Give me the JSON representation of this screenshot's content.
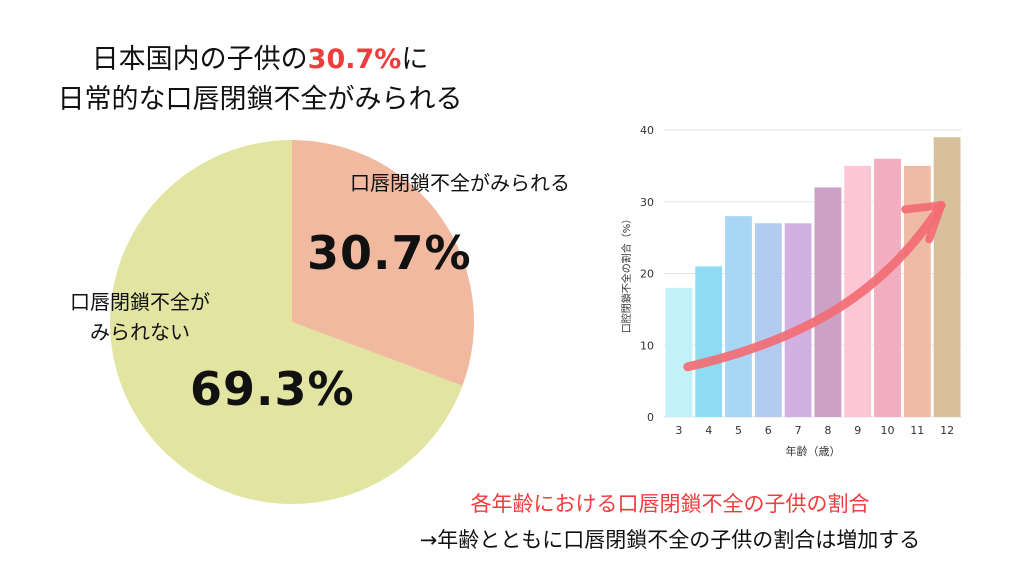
{
  "title": {
    "line1_prefix": "日本国内の子供の",
    "line1_highlight": "30.7%",
    "line1_suffix": "に",
    "line2": "日常的な口唇閉鎖不全がみられる",
    "highlight_color": "#f03c3c"
  },
  "chart_data": [
    {
      "type": "pie",
      "slices": [
        {
          "label": "口唇閉鎖不全がみられる",
          "value": 30.7,
          "value_label": "30.7%",
          "color": "#f0b9a0"
        },
        {
          "label_lines": [
            "口唇閉鎖不全が",
            "みられない"
          ],
          "value": 69.3,
          "value_label": "69.3%",
          "color": "#e1e5a1"
        }
      ]
    },
    {
      "type": "bar",
      "categories": [
        "3",
        "4",
        "5",
        "6",
        "7",
        "8",
        "9",
        "10",
        "11",
        "12"
      ],
      "values": [
        18,
        21,
        28,
        27,
        27,
        32,
        35,
        36,
        35,
        39
      ],
      "colors": [
        "#c2f2f8",
        "#8fdcf2",
        "#a8d6f5",
        "#b3cbef",
        "#d2b1e2",
        "#cda0c5",
        "#fcc6d6",
        "#f2aec0",
        "#f0bba4",
        "#d8c09c"
      ],
      "xlabel": "年齢（歳）",
      "ylabel": "口腔閉鎖不全の割合（%）",
      "ylim": [
        0,
        40
      ],
      "yticks": [
        0,
        10,
        20,
        30,
        40
      ],
      "grid": true,
      "trend_arrow_color": "#f26d73"
    }
  ],
  "caption": {
    "line1": "各年齢における口唇閉鎖不全の子供の割合",
    "line2": "→年齢とともに口唇閉鎖不全の子供の割合は増加する"
  }
}
